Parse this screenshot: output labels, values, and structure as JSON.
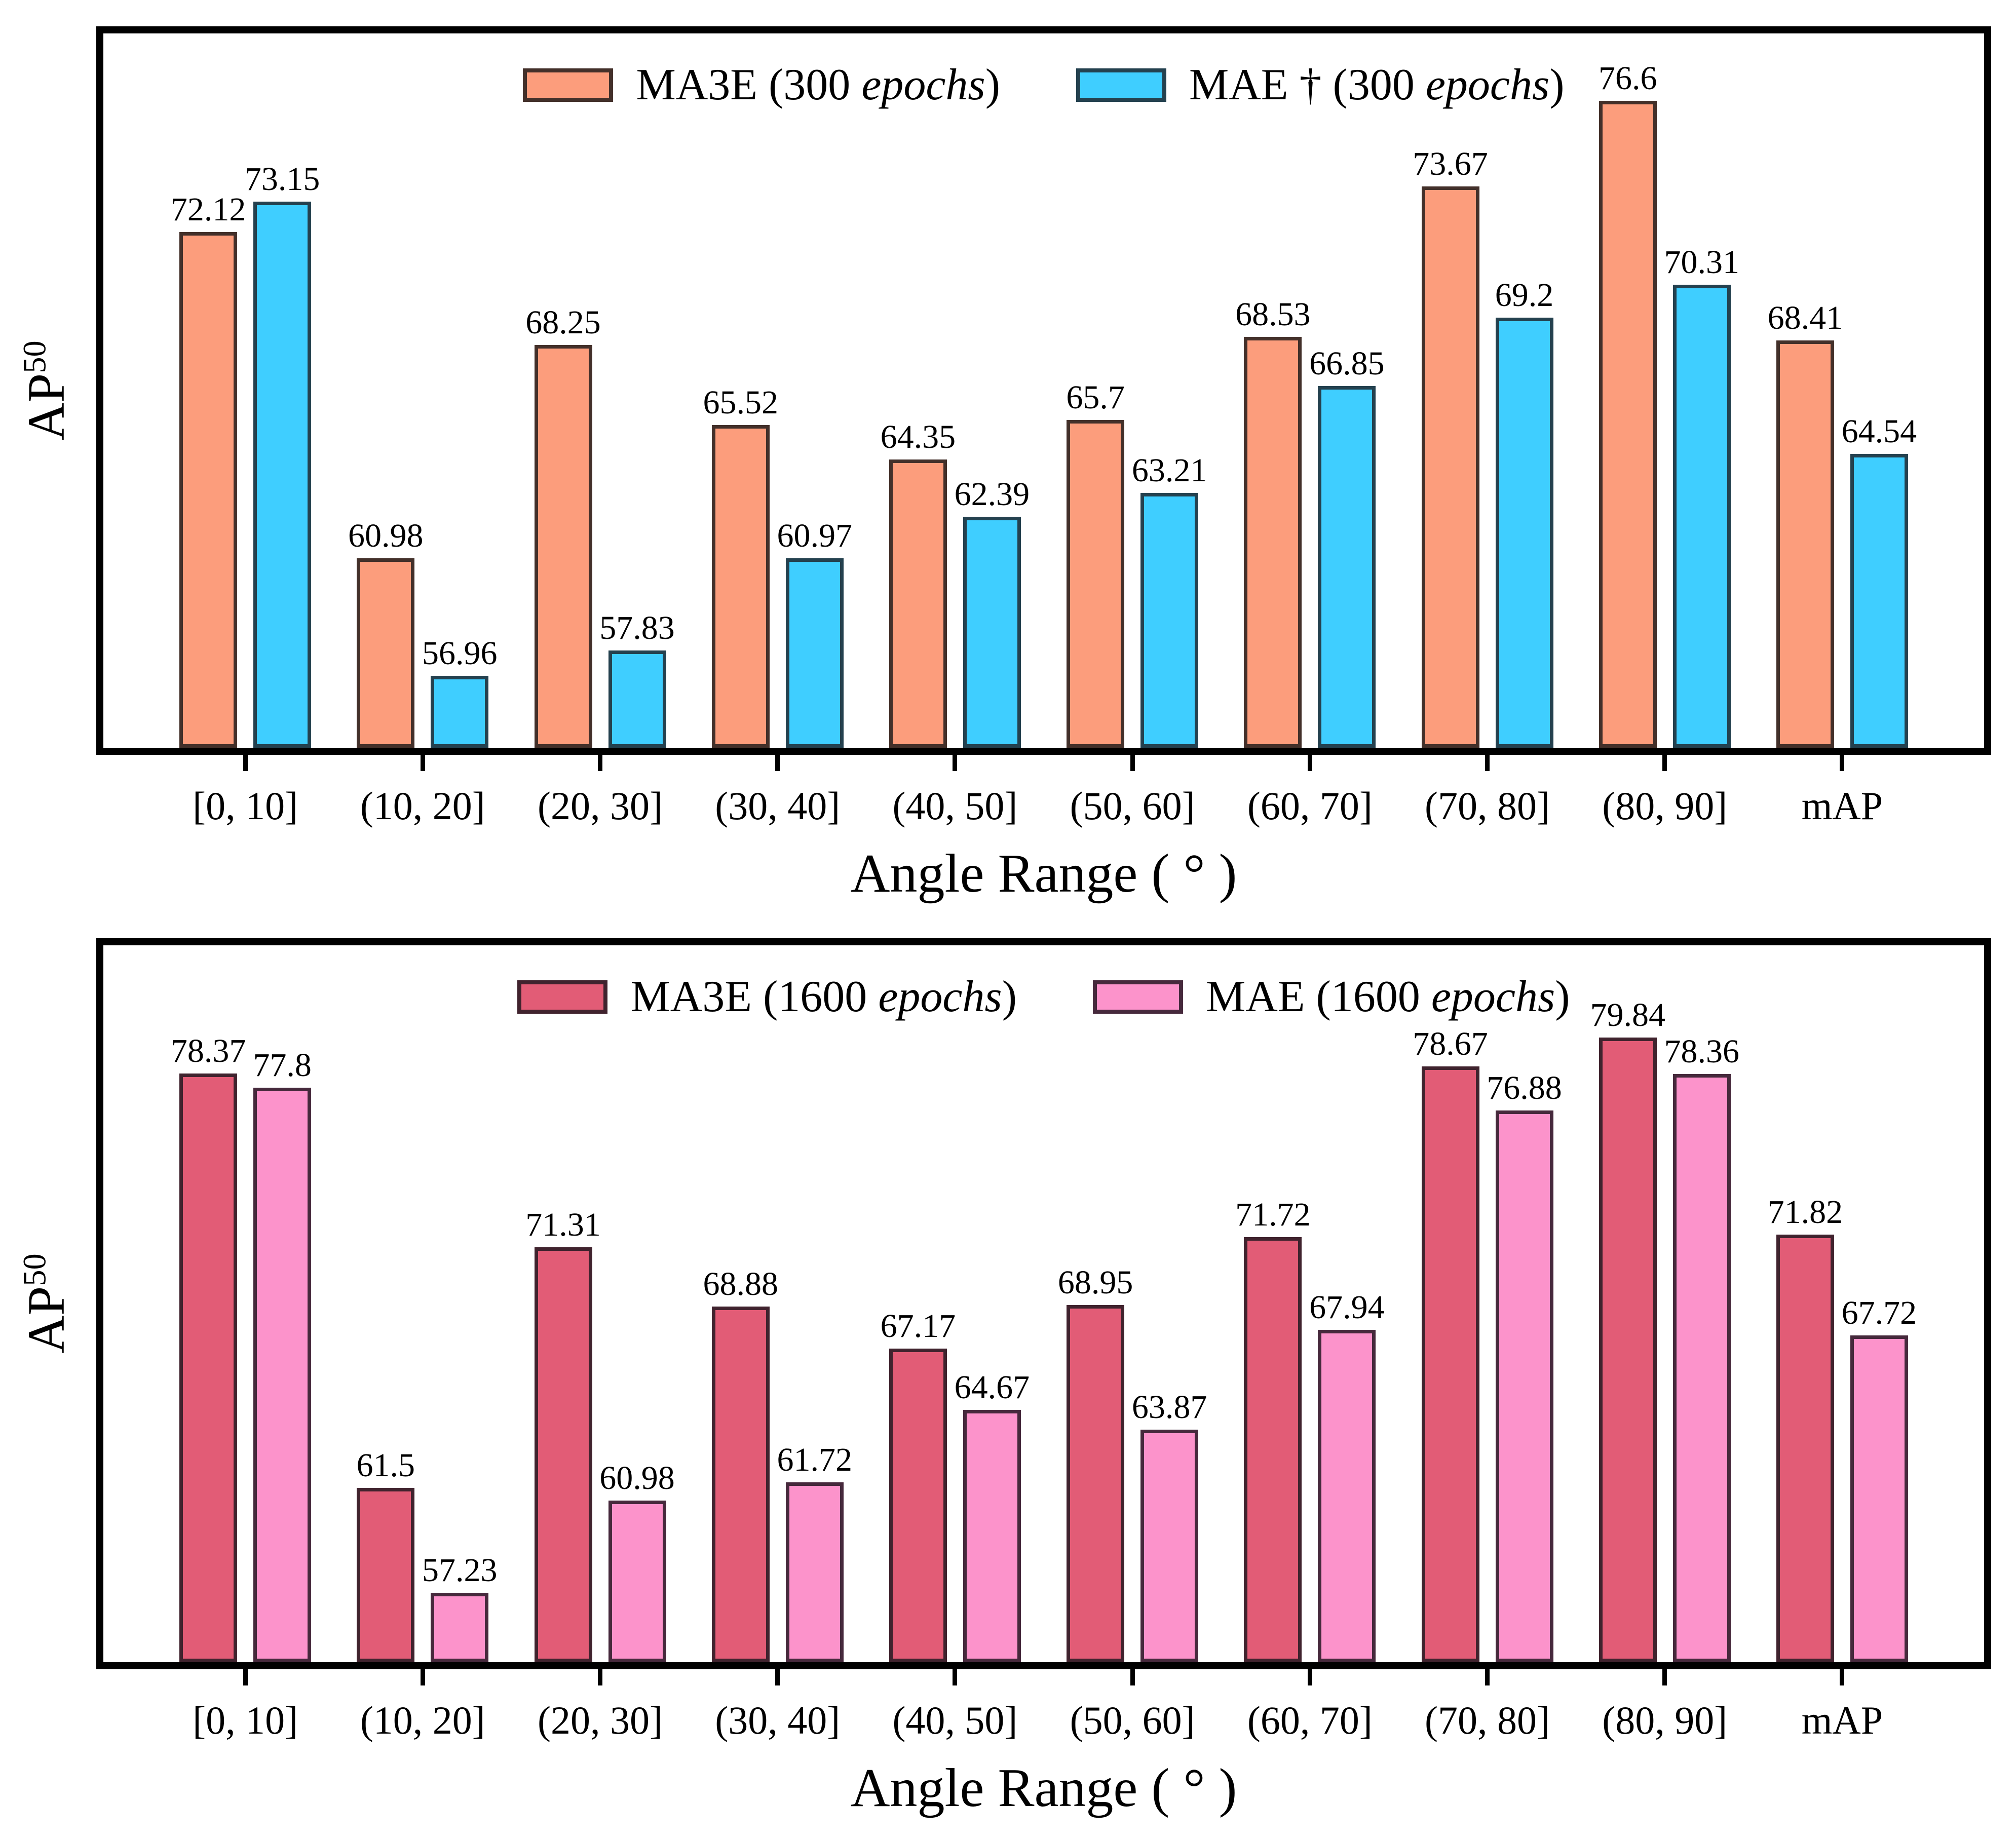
{
  "page": {
    "background": "#ffffff"
  },
  "chart_data": [
    {
      "type": "bar",
      "title": "",
      "categories": [
        "[0, 10]",
        "(10, 20]",
        "(20, 30]",
        "(30, 40]",
        "(40, 50]",
        "(50, 60]",
        "(60, 70]",
        "(70, 80]",
        "(80, 90]",
        "mAP"
      ],
      "series": [
        {
          "name": "MA3E (300 epochs)",
          "color": "#FC9D7C",
          "edge_color": "#43302A",
          "values": [
            72.12,
            60.98,
            68.25,
            65.52,
            64.35,
            65.7,
            68.53,
            73.67,
            76.6,
            68.41
          ]
        },
        {
          "name": "MAE † (300 epochs)",
          "color": "#3FCEFF",
          "edge_color": "#24414F",
          "values": [
            73.15,
            56.96,
            57.83,
            60.97,
            62.39,
            63.21,
            66.85,
            69.2,
            70.31,
            64.54
          ]
        }
      ],
      "xlabel": "Angle Range ( ° )",
      "ylabel": "AP",
      "ylabel_superscript": "50",
      "ylim": [
        54.5,
        78.9
      ],
      "grid": false,
      "legend_position": "upper center",
      "bar_value_labels": true,
      "frame_color": "#000000"
    },
    {
      "type": "bar",
      "title": "",
      "categories": [
        "[0, 10]",
        "(10, 20]",
        "(20, 30]",
        "(30, 40]",
        "(40, 50]",
        "(50, 60]",
        "(60, 70]",
        "(70, 80]",
        "(80, 90]",
        "mAP"
      ],
      "series": [
        {
          "name": "MA3E (1600 epochs)",
          "color": "#E25C76",
          "edge_color": "#40232E",
          "values": [
            78.37,
            61.5,
            71.31,
            68.88,
            67.17,
            68.95,
            71.72,
            78.67,
            79.84,
            71.82
          ]
        },
        {
          "name": "MAE (1600 epochs)",
          "color": "#FC93CB",
          "edge_color": "#46293C",
          "values": [
            77.8,
            57.23,
            60.98,
            61.72,
            64.67,
            63.87,
            67.94,
            76.88,
            78.36,
            67.72
          ]
        }
      ],
      "xlabel": "Angle Range ( ° )",
      "ylabel": "AP",
      "ylabel_superscript": "50",
      "ylim": [
        54.4,
        83.6
      ],
      "grid": false,
      "legend_position": "upper center",
      "bar_value_labels": true,
      "frame_color": "#000000"
    }
  ]
}
